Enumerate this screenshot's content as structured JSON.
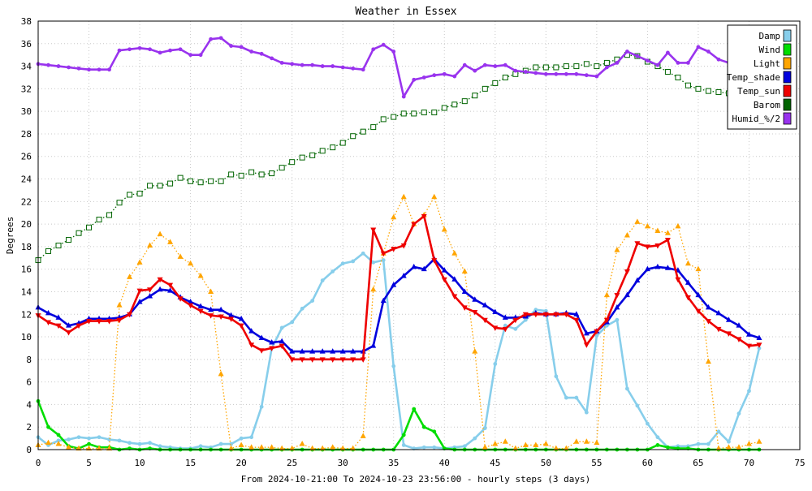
{
  "chart_data": {
    "type": "line",
    "title": "Weather in Essex",
    "xlabel": "From 2024-10-21:00 To 2024-10-23 23:56:00 - hourly steps (3 days)",
    "ylabel": "Degrees",
    "xlim": [
      0,
      75
    ],
    "ylim": [
      0,
      38
    ],
    "xticks": [
      "0",
      "5",
      "10",
      "15",
      "20",
      "25",
      "30",
      "35",
      "40",
      "45",
      "50",
      "55",
      "60",
      "65",
      "70",
      "75"
    ],
    "yticks": [
      "0",
      "2",
      "4",
      "6",
      "8",
      "10",
      "12",
      "14",
      "16",
      "18",
      "20",
      "22",
      "24",
      "26",
      "28",
      "30",
      "32",
      "34",
      "36",
      "38"
    ],
    "grid": true,
    "legend_position": "top-right",
    "series": [
      {
        "name": "Damp",
        "color": "#87ceeb",
        "style": "solid",
        "marker": "dot",
        "values": [
          1.1,
          0.4,
          0.8,
          0.9,
          1.1,
          1.0,
          1.1,
          0.9,
          0.8,
          0.6,
          0.5,
          0.6,
          0.3,
          0.2,
          0.1,
          0.1,
          0.3,
          0.2,
          0.5,
          0.5,
          1.0,
          1.1,
          3.8,
          9.0,
          10.8,
          11.3,
          12.5,
          13.2,
          15.0,
          15.8,
          16.5,
          16.7,
          17.4,
          16.6,
          16.8,
          7.4,
          0.4,
          0.1,
          0.2,
          0.2,
          0.1,
          0.2,
          0.3,
          1.0,
          1.9,
          7.6,
          11.0,
          10.7,
          11.5,
          12.4,
          12.3,
          6.5,
          4.6,
          4.6,
          3.3,
          10.1,
          11.0,
          11.5,
          5.4,
          3.9,
          2.3,
          1.1,
          0.2,
          0.3,
          0.3,
          0.5,
          0.5,
          1.6,
          0.7,
          3.2,
          5.2,
          9.0
        ]
      },
      {
        "name": "Wind",
        "color": "#00dd00",
        "style": "solid",
        "marker": "dot",
        "values": [
          4.3,
          2.0,
          1.3,
          0.3,
          0.1,
          0.5,
          0.2,
          0.2,
          0.0,
          0.1,
          0.0,
          0.1,
          0.0,
          0.0,
          0.0,
          0.0,
          0.0,
          0.0,
          0.0,
          0.0,
          0.0,
          0.0,
          0.0,
          0.0,
          0.0,
          0.0,
          0.0,
          0.0,
          0.0,
          0.0,
          0.0,
          0.0,
          0.0,
          0.0,
          0.0,
          0.0,
          1.3,
          3.6,
          2.0,
          1.6,
          0.1,
          0.0,
          0.0,
          0.0,
          0.0,
          0.0,
          0.0,
          0.0,
          0.0,
          0.0,
          0.0,
          0.0,
          0.0,
          0.0,
          0.0,
          0.0,
          0.0,
          0.0,
          0.0,
          0.0,
          0.0,
          0.4,
          0.2,
          0.1,
          0.1,
          0.0,
          0.0,
          0.0,
          0.0,
          0.0,
          0.0,
          0.0
        ]
      },
      {
        "name": "Light",
        "color": "#ffa500",
        "style": "dotted",
        "marker": "triangle-up",
        "values": [
          0.4,
          0.6,
          0.5,
          0.2,
          0.1,
          0.1,
          0.1,
          0.1,
          12.8,
          15.3,
          16.6,
          18.1,
          19.1,
          18.4,
          17.1,
          16.5,
          15.4,
          14.0,
          6.7,
          0.1,
          0.4,
          0.2,
          0.2,
          0.2,
          0.1,
          0.1,
          0.5,
          0.1,
          0.1,
          0.2,
          0.1,
          0.1,
          1.2,
          14.2,
          17.4,
          20.6,
          22.4,
          20.0,
          20.8,
          22.4,
          19.5,
          17.4,
          15.8,
          8.7,
          0.2,
          0.5,
          0.7,
          0.1,
          0.4,
          0.4,
          0.5,
          0.1,
          0.1,
          0.7,
          0.7,
          0.6,
          13.7,
          17.7,
          19.0,
          20.2,
          19.8,
          19.4,
          19.2,
          19.8,
          16.5,
          16.0,
          7.8,
          0.1,
          0.2,
          0.2,
          0.5,
          0.7
        ]
      },
      {
        "name": "Temp_shade",
        "color": "#0000dd",
        "style": "solid",
        "marker": "triangle-up",
        "values": [
          12.6,
          12.1,
          11.7,
          11.0,
          11.2,
          11.6,
          11.6,
          11.6,
          11.7,
          12.0,
          13.1,
          13.6,
          14.2,
          14.1,
          13.5,
          13.1,
          12.7,
          12.4,
          12.4,
          11.9,
          11.6,
          10.5,
          9.9,
          9.5,
          9.6,
          8.7,
          8.7,
          8.7,
          8.7,
          8.7,
          8.7,
          8.7,
          8.7,
          9.2,
          13.2,
          14.6,
          15.4,
          16.2,
          16.0,
          16.9,
          15.9,
          15.1,
          14.0,
          13.3,
          12.8,
          12.2,
          11.7,
          11.7,
          11.8,
          12.1,
          12.0,
          12.0,
          12.1,
          12.0,
          10.3,
          10.5,
          11.3,
          12.6,
          13.7,
          15.0,
          16.0,
          16.2,
          16.1,
          15.9,
          14.8,
          13.7,
          12.6,
          12.1,
          11.5,
          11.0,
          10.2,
          9.9
        ]
      },
      {
        "name": "Temp_sun",
        "color": "#ee0000",
        "style": "solid",
        "marker": "triangle-down",
        "values": [
          11.9,
          11.3,
          11.0,
          10.4,
          11.0,
          11.4,
          11.4,
          11.4,
          11.5,
          12.0,
          14.1,
          14.2,
          15.1,
          14.6,
          13.4,
          12.8,
          12.3,
          11.9,
          11.8,
          11.6,
          11.0,
          9.3,
          8.8,
          9.0,
          9.2,
          8.0,
          8.0,
          8.0,
          8.0,
          8.0,
          8.0,
          8.0,
          8.0,
          19.5,
          17.4,
          17.8,
          18.1,
          20.0,
          20.7,
          16.8,
          15.1,
          13.6,
          12.6,
          12.2,
          11.5,
          10.8,
          10.7,
          11.5,
          12.0,
          12.0,
          12.0,
          12.0,
          12.0,
          11.5,
          9.3,
          10.5,
          11.5,
          13.7,
          15.8,
          18.3,
          18.0,
          18.1,
          18.6,
          15.1,
          13.5,
          12.3,
          11.4,
          10.7,
          10.3,
          9.8,
          9.2,
          9.3
        ]
      },
      {
        "name": "Barom",
        "color": "#006400",
        "style": "dotted",
        "marker": "square",
        "values": [
          16.8,
          17.6,
          18.1,
          18.6,
          19.2,
          19.7,
          20.4,
          20.8,
          21.9,
          22.6,
          22.7,
          23.4,
          23.4,
          23.6,
          24.1,
          23.8,
          23.7,
          23.8,
          23.8,
          24.4,
          24.3,
          24.6,
          24.4,
          24.5,
          25.0,
          25.5,
          25.9,
          26.1,
          26.5,
          26.8,
          27.2,
          27.8,
          28.2,
          28.6,
          29.3,
          29.5,
          29.8,
          29.8,
          29.9,
          29.9,
          30.3,
          30.6,
          30.9,
          31.4,
          32.0,
          32.5,
          33.0,
          33.3,
          33.6,
          33.9,
          33.9,
          33.9,
          34.0,
          34.0,
          34.2,
          34.0,
          34.3,
          34.6,
          35.0,
          34.9,
          34.4,
          34.0,
          33.5,
          33.0,
          32.3,
          32.0,
          31.8,
          31.7,
          31.6,
          31.5,
          31.3,
          31.2
        ]
      },
      {
        "name": "Humid_%/2",
        "color": "#9933ee",
        "style": "solid",
        "marker": "dot",
        "values": [
          34.2,
          34.1,
          34.0,
          33.9,
          33.8,
          33.7,
          33.7,
          33.7,
          35.4,
          35.5,
          35.6,
          35.5,
          35.2,
          35.4,
          35.5,
          35.0,
          35.0,
          36.4,
          36.5,
          35.8,
          35.7,
          35.3,
          35.1,
          34.7,
          34.3,
          34.2,
          34.1,
          34.1,
          34.0,
          34.0,
          33.9,
          33.8,
          33.7,
          35.5,
          35.9,
          35.3,
          31.3,
          32.8,
          33.0,
          33.2,
          33.3,
          33.1,
          34.1,
          33.6,
          34.1,
          34.0,
          34.1,
          33.6,
          33.5,
          33.4,
          33.3,
          33.3,
          33.3,
          33.3,
          33.2,
          33.1,
          33.9,
          34.3,
          35.3,
          34.9,
          34.5,
          34.1,
          35.2,
          34.3,
          34.3,
          35.7,
          35.3,
          34.6,
          34.3,
          34.0,
          33.5,
          33.0
        ]
      }
    ]
  }
}
